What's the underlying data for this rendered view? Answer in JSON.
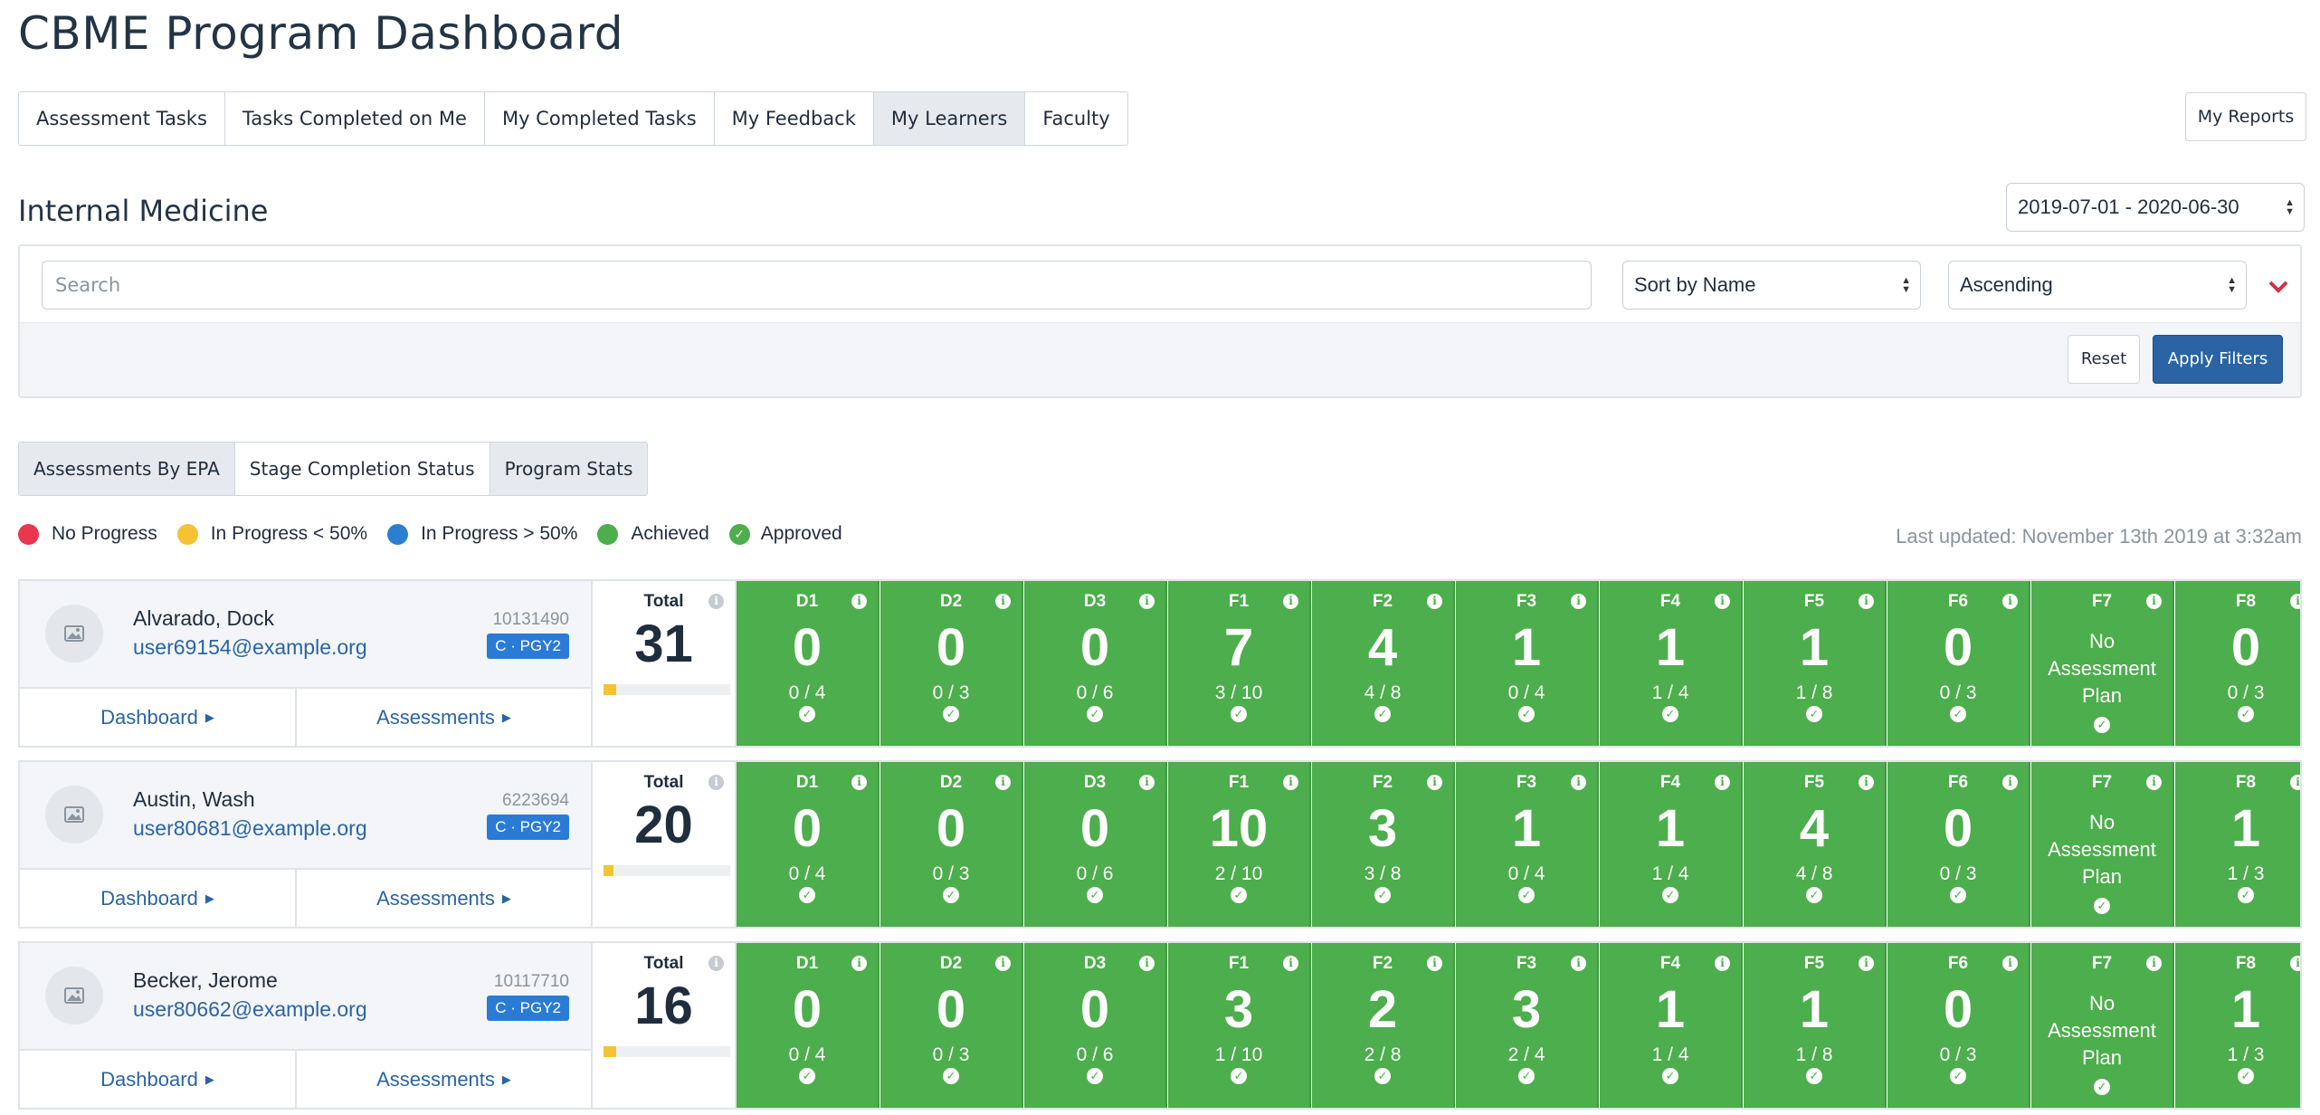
{
  "title": "CBME Program Dashboard",
  "tabs": [
    {
      "label": "Assessment Tasks",
      "active": false
    },
    {
      "label": "Tasks Completed on Me",
      "active": false
    },
    {
      "label": "My Completed Tasks",
      "active": false
    },
    {
      "label": "My Feedback",
      "active": false
    },
    {
      "label": "My Learners",
      "active": true
    },
    {
      "label": "Faculty",
      "active": false
    }
  ],
  "reports_button": "My Reports",
  "section_title": "Internal Medicine",
  "date_range": "2019-07-01 - 2020-06-30",
  "filters": {
    "search_placeholder": "Search",
    "sort_by": "Sort by Name",
    "order": "Ascending",
    "reset_label": "Reset",
    "apply_label": "Apply Filters"
  },
  "subtabs": [
    {
      "label": "Assessments By EPA",
      "active": false
    },
    {
      "label": "Stage Completion Status",
      "active": true
    },
    {
      "label": "Program Stats",
      "active": false
    }
  ],
  "legend": [
    {
      "label": "No Progress",
      "color": "#e8374f"
    },
    {
      "label": "In Progress < 50%",
      "color": "#f4c232"
    },
    {
      "label": "In Progress > 50%",
      "color": "#2e7ed0"
    },
    {
      "label": "Achieved",
      "color": "#4cae4c"
    },
    {
      "label": "Approved",
      "icon": "check-circle-icon"
    }
  ],
  "last_updated": "Last updated: November 13th 2019 at 3:32am",
  "dashboard_link": "Dashboard",
  "assessments_link": "Assessments",
  "total_label": "Total",
  "no_plan_lines": [
    "No",
    "Assessment",
    "Plan"
  ],
  "learners": [
    {
      "name": "Alvarado, Dock",
      "email": "user69154@example.org",
      "id": "10131490",
      "badge": "C · PGY2",
      "total": "31",
      "total_progress": 0.1,
      "epas": [
        {
          "code": "D1",
          "value": "0",
          "ratio": "0 / 4"
        },
        {
          "code": "D2",
          "value": "0",
          "ratio": "0 / 3"
        },
        {
          "code": "D3",
          "value": "0",
          "ratio": "0 / 6"
        },
        {
          "code": "F1",
          "value": "7",
          "ratio": "3 / 10"
        },
        {
          "code": "F2",
          "value": "4",
          "ratio": "4 / 8"
        },
        {
          "code": "F3",
          "value": "1",
          "ratio": "0 / 4"
        },
        {
          "code": "F4",
          "value": "1",
          "ratio": "1 / 4"
        },
        {
          "code": "F5",
          "value": "1",
          "ratio": "1 / 8"
        },
        {
          "code": "F6",
          "value": "0",
          "ratio": "0 / 3"
        },
        {
          "code": "F7",
          "no_plan": true
        },
        {
          "code": "F8",
          "value": "0",
          "ratio": "0 / 3"
        }
      ]
    },
    {
      "name": "Austin, Wash",
      "email": "user80681@example.org",
      "id": "6223694",
      "badge": "C · PGY2",
      "total": "20",
      "total_progress": 0.08,
      "epas": [
        {
          "code": "D1",
          "value": "0",
          "ratio": "0 / 4"
        },
        {
          "code": "D2",
          "value": "0",
          "ratio": "0 / 3"
        },
        {
          "code": "D3",
          "value": "0",
          "ratio": "0 / 6"
        },
        {
          "code": "F1",
          "value": "10",
          "ratio": "2 / 10"
        },
        {
          "code": "F2",
          "value": "3",
          "ratio": "3 / 8"
        },
        {
          "code": "F3",
          "value": "1",
          "ratio": "0 / 4"
        },
        {
          "code": "F4",
          "value": "1",
          "ratio": "1 / 4"
        },
        {
          "code": "F5",
          "value": "4",
          "ratio": "4 / 8"
        },
        {
          "code": "F6",
          "value": "0",
          "ratio": "0 / 3"
        },
        {
          "code": "F7",
          "no_plan": true
        },
        {
          "code": "F8",
          "value": "1",
          "ratio": "1 / 3"
        }
      ]
    },
    {
      "name": "Becker, Jerome",
      "email": "user80662@example.org",
      "id": "10117710",
      "badge": "C · PGY2",
      "total": "16",
      "total_progress": 0.1,
      "epas": [
        {
          "code": "D1",
          "value": "0",
          "ratio": "0 / 4"
        },
        {
          "code": "D2",
          "value": "0",
          "ratio": "0 / 3"
        },
        {
          "code": "D3",
          "value": "0",
          "ratio": "0 / 6"
        },
        {
          "code": "F1",
          "value": "3",
          "ratio": "1 / 10"
        },
        {
          "code": "F2",
          "value": "2",
          "ratio": "2 / 8"
        },
        {
          "code": "F3",
          "value": "3",
          "ratio": "2 / 4"
        },
        {
          "code": "F4",
          "value": "1",
          "ratio": "1 / 4"
        },
        {
          "code": "F5",
          "value": "1",
          "ratio": "1 / 8"
        },
        {
          "code": "F6",
          "value": "0",
          "ratio": "0 / 3"
        },
        {
          "code": "F7",
          "no_plan": true
        },
        {
          "code": "F8",
          "value": "1",
          "ratio": "1 / 3"
        }
      ]
    }
  ]
}
